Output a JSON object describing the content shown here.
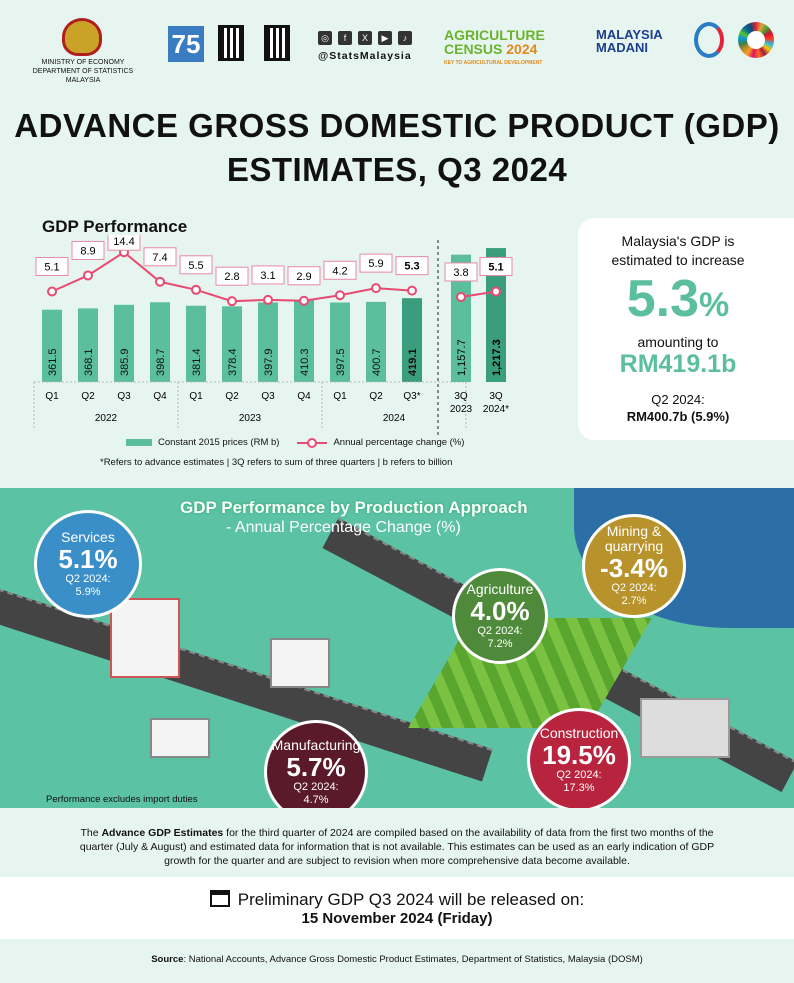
{
  "header": {
    "ministry_line1": "MINISTRY OF ECONOMY",
    "ministry_line2": "DEPARTMENT OF STATISTICS MALAYSIA",
    "dosm75": "75",
    "social_handle": "@StatsMalaysia",
    "agri_line1": "AGRICULTURE",
    "agri_line2": "CENSUS",
    "agri_year": "2024",
    "agri_tagline": "KEY TO AGRICULTURAL DEVELOPMENT",
    "madani_line1": "MALAYSIA",
    "madani_line2": "MADANI"
  },
  "title_line1": "ADVANCE GROSS DOMESTIC PRODUCT (GDP)",
  "title_line2": "ESTIMATES, Q3 2024",
  "chart_data": {
    "type": "bar",
    "title": "GDP Performance",
    "categories": [
      "Q1",
      "Q2",
      "Q3",
      "Q4",
      "Q1",
      "Q2",
      "Q3",
      "Q4",
      "Q1",
      "Q2",
      "Q3*"
    ],
    "years": [
      "2022",
      "2023",
      "2024"
    ],
    "series": [
      {
        "name": "Constant 2015 prices (RM b)",
        "type": "bar",
        "values": [
          361.5,
          368.1,
          385.9,
          398.7,
          381.4,
          378.4,
          397.9,
          410.3,
          397.5,
          400.7,
          419.1
        ]
      },
      {
        "name": "Annual percentage change (%)",
        "type": "line",
        "values": [
          5.1,
          8.9,
          14.4,
          7.4,
          5.5,
          2.8,
          3.1,
          2.9,
          4.2,
          5.9,
          5.3
        ]
      }
    ],
    "cumulative": {
      "categories": [
        "3Q 2023",
        "3Q 2024*"
      ],
      "bar_values": [
        1157.7,
        1217.3
      ],
      "bar_labels": [
        "1,157.7",
        "1,217.3"
      ],
      "line_values": [
        3.8,
        5.1
      ]
    },
    "colors": {
      "bar": "#5bbf9e",
      "bar_highlight": "#3a9e7e",
      "line": "#e84a72"
    },
    "legend": "bottom",
    "footnote": "*Refers to advance estimates  |  3Q refers to sum of three quarters  |  b refers to billion"
  },
  "card": {
    "line1": "Malaysia's GDP is",
    "line2": "estimated to increase",
    "value": "5.3",
    "unit": "%",
    "amounting": "amounting to",
    "amount": "RM419.1b",
    "q2_label": "Q2 2024:",
    "q2_value": "RM400.7b (5.9%)"
  },
  "sectors": {
    "title": "GDP Performance by Production Approach",
    "subtitle": "- Annual Percentage Change (%)",
    "items": [
      {
        "name": "Services",
        "value": "5.1%",
        "q2": "Q2 2024:",
        "q2v": "5.9%",
        "color": "#3a8fc9"
      },
      {
        "name": "Agriculture",
        "value": "4.0%",
        "q2": "Q2 2024:",
        "q2v": "7.2%",
        "color": "#4e8a3a"
      },
      {
        "name": "Mining & quarrying",
        "value": "-3.4%",
        "q2": "Q2 2024:",
        "q2v": "2.7%",
        "color": "#b8922a"
      },
      {
        "name": "Manufacturing",
        "value": "5.7%",
        "q2": "Q2 2024:",
        "q2v": "4.7%",
        "color": "#5a1a2a"
      },
      {
        "name": "Construction",
        "value": "19.5%",
        "q2": "Q2 2024:",
        "q2v": "17.3%",
        "color": "#b8243e"
      }
    ],
    "exclusion_note": "Performance excludes import duties"
  },
  "note": {
    "bold": "Advance GDP Estimates",
    "pre": "The ",
    "text": " for the third quarter of 2024 are compiled based on the availability of data from the first two months of the quarter (July & August) and estimated data for information that is not available. This estimates can be used as an early indication of GDP growth for the quarter and are subject to revision when more comprehensive data become available."
  },
  "release": {
    "line1": "Preliminary GDP Q3 2024 will be released on:",
    "line2": "15 November 2024 (Friday)"
  },
  "source": {
    "label": "Source",
    "text": ": National Accounts, Advance Gross Domestic Product Estimates, Department of Statistics, Malaysia (DOSM)"
  }
}
